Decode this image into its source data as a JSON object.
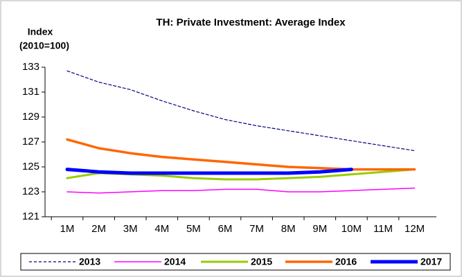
{
  "chart_data": {
    "type": "line",
    "title": "TH: Private Investment: Average Index",
    "y_label": [
      "Index",
      "(2010=100)"
    ],
    "categories": [
      "1M",
      "2M",
      "3M",
      "4M",
      "5M",
      "6M",
      "7M",
      "8M",
      "9M",
      "10M",
      "11M",
      "12M"
    ],
    "series": [
      {
        "name": "2013",
        "color": "#000080",
        "width": 1.2,
        "dash": true,
        "values": [
          132.7,
          131.8,
          131.2,
          130.3,
          129.5,
          128.8,
          128.3,
          127.9,
          127.5,
          127.1,
          126.7,
          126.3
        ]
      },
      {
        "name": "2014",
        "color": "#ff00ff",
        "width": 1.5,
        "dash": false,
        "values": [
          123.0,
          122.9,
          123.0,
          123.1,
          123.1,
          123.2,
          123.2,
          123.0,
          123.0,
          123.1,
          123.2,
          123.3
        ]
      },
      {
        "name": "2015",
        "color": "#99cc00",
        "width": 3,
        "dash": false,
        "values": [
          124.1,
          124.5,
          124.4,
          124.3,
          124.1,
          124.0,
          124.0,
          124.1,
          124.2,
          124.4,
          124.6,
          124.8
        ]
      },
      {
        "name": "2016",
        "color": "#ff6600",
        "width": 3.5,
        "dash": false,
        "values": [
          127.2,
          126.5,
          126.1,
          125.8,
          125.6,
          125.4,
          125.2,
          125.0,
          124.9,
          124.8,
          124.8,
          124.8
        ]
      },
      {
        "name": "2017",
        "color": "#0000ff",
        "width": 5,
        "dash": false,
        "values": [
          124.8,
          124.6,
          124.5,
          124.5,
          124.5,
          124.5,
          124.5,
          124.5,
          124.6,
          124.8,
          null,
          null
        ]
      }
    ],
    "ylim": [
      121,
      133
    ],
    "yticks": [
      121,
      123,
      125,
      127,
      129,
      131,
      133
    ],
    "grid": false,
    "legend": "bottom"
  }
}
